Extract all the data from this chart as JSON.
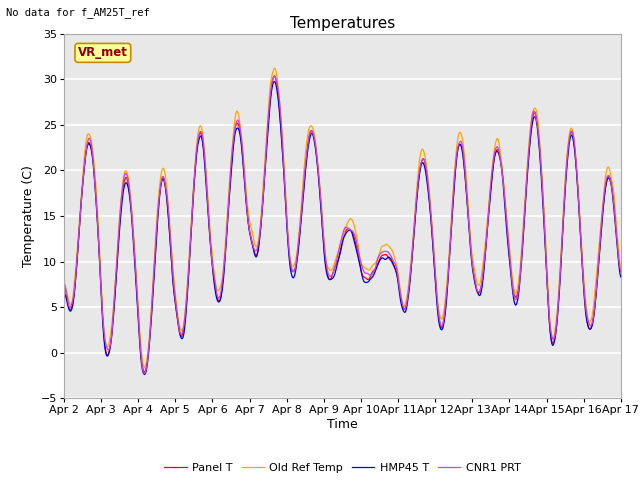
{
  "title": "Temperatures",
  "xlabel": "Time",
  "ylabel": "Temperature (C)",
  "ylim": [
    -5,
    35
  ],
  "note": "No data for f_AM25T_ref",
  "vr_label": "VR_met",
  "xtick_labels": [
    "Apr 2",
    "Apr 3",
    "Apr 4",
    "Apr 5",
    "Apr 6",
    "Apr 7",
    "Apr 8",
    "Apr 9",
    "Apr 10",
    "Apr 11",
    "Apr 12",
    "Apr 13",
    "Apr 14",
    "Apr 15",
    "Apr 16",
    "Apr 17"
  ],
  "line_colors": {
    "panel_t": "#ff0000",
    "old_ref": "#ffa500",
    "hmp45": "#0000dd",
    "cnr1": "#cc44cc"
  },
  "legend_labels": [
    "Panel T",
    "Old Ref Temp",
    "HMP45 T",
    "CNR1 PRT"
  ],
  "bg_color": "#e8e8e8",
  "fig_color": "#ffffff",
  "grid_color": "#ffffff",
  "title_fontsize": 11,
  "label_fontsize": 9,
  "tick_fontsize": 8
}
